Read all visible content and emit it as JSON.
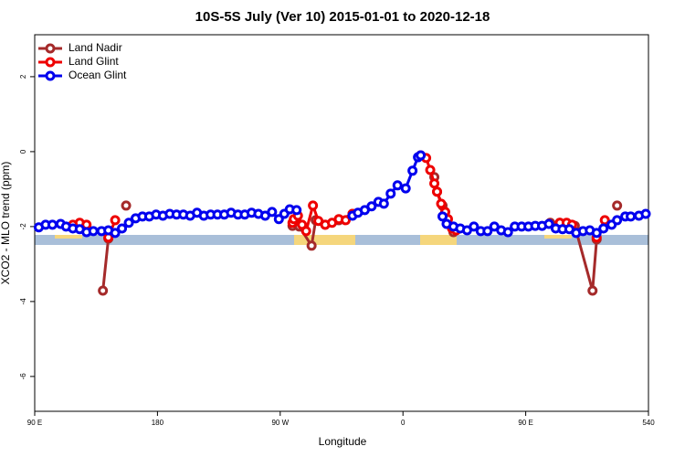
{
  "chart_data": {
    "type": "line",
    "title": "10S-5S July (Ver 10)   2015-01-01 to 2020-12-18",
    "x_label": "Longitude",
    "y_label": "XCO2 - MLO trend (ppm)",
    "xlim": [
      90,
      540
    ],
    "ylim": [
      -6.93,
      3.12
    ],
    "xticks": [
      {
        "value": 90,
        "label": "90 E"
      },
      180,
      {
        "value": 270,
        "label": "90 W"
      },
      {
        "value": 360,
        "label": "0"
      },
      {
        "value": 450,
        "label": "90 E"
      },
      540
    ],
    "yticks": [
      2,
      0,
      -2,
      -4,
      -6
    ],
    "legend": "top-left",
    "series": [
      {
        "name": "Land Nadir",
        "color": "#a52a2a",
        "x": [
          140,
          144,
          null,
          157,
          null,
          279,
          281,
          284,
          293,
          296,
          303,
          313,
          323,
          null,
          383,
          385,
          389,
          397,
          null,
          468,
          475,
          486,
          499,
          502,
          null,
          517
        ],
        "values": [
          -3.71,
          -2.32,
          null,
          -1.44,
          null,
          -1.98,
          -1.88,
          -2.0,
          -2.51,
          -1.83,
          -1.95,
          -1.83,
          -1.66,
          null,
          -0.68,
          -1.07,
          -1.44,
          -2.15,
          null,
          -1.9,
          -1.9,
          -1.98,
          -3.71,
          -2.34,
          null,
          -1.44
        ]
      },
      {
        "name": "Land Glint",
        "color": "#ee0000",
        "x": [
          118,
          123,
          128,
          null,
          144,
          149,
          null,
          279,
          280,
          283,
          286,
          289,
          294,
          298,
          303,
          308,
          313,
          318,
          323,
          null,
          373,
          377,
          380,
          383,
          385,
          388,
          391,
          393,
          396,
          399,
          null,
          475,
          480,
          484,
          null,
          502,
          508
        ],
        "values": [
          -1.95,
          -1.9,
          -1.95,
          null,
          -2.29,
          -1.83,
          null,
          -1.9,
          -1.8,
          -1.71,
          -1.95,
          -2.12,
          -1.44,
          -1.85,
          -1.95,
          -1.9,
          -1.8,
          -1.83,
          -1.66,
          null,
          -0.1,
          -0.17,
          -0.49,
          -0.85,
          -1.07,
          -1.39,
          -1.61,
          -1.8,
          -2.05,
          -2.1,
          null,
          -1.9,
          -1.9,
          -1.95,
          null,
          -2.29,
          -1.83
        ]
      },
      {
        "name": "Ocean Glint",
        "color": "#0000ee",
        "x": [
          93,
          98,
          103,
          109,
          113,
          118,
          123,
          128,
          133,
          139,
          144,
          149,
          154,
          159,
          164,
          169,
          174,
          179,
          184,
          189,
          194,
          199,
          204,
          209,
          214,
          219,
          224,
          229,
          234,
          239,
          244,
          249,
          254,
          259,
          264,
          269,
          273,
          277,
          282,
          null,
          323,
          327,
          332,
          337,
          342,
          346,
          351,
          356,
          362,
          367,
          371,
          373,
          null,
          389,
          392,
          397,
          402,
          407,
          412,
          417,
          422,
          427,
          432,
          437,
          442,
          447,
          452,
          457,
          462,
          467,
          472,
          477,
          482,
          487,
          492,
          497,
          502,
          507,
          513,
          517,
          523,
          527,
          533,
          538
        ],
        "values": [
          -2.02,
          -1.95,
          -1.95,
          -1.93,
          -2.0,
          -2.05,
          -2.07,
          -2.15,
          -2.12,
          -2.12,
          -2.1,
          -2.17,
          -2.05,
          -1.9,
          -1.78,
          -1.73,
          -1.73,
          -1.68,
          -1.71,
          -1.66,
          -1.68,
          -1.68,
          -1.71,
          -1.63,
          -1.71,
          -1.68,
          -1.68,
          -1.68,
          -1.63,
          -1.68,
          -1.68,
          -1.63,
          -1.66,
          -1.71,
          -1.61,
          -1.8,
          -1.66,
          -1.54,
          -1.56,
          null,
          -1.71,
          -1.63,
          -1.56,
          -1.46,
          -1.34,
          -1.39,
          -1.12,
          -0.9,
          -0.98,
          -0.51,
          -0.15,
          -0.1,
          null,
          -1.73,
          -1.93,
          -2.0,
          -2.05,
          -2.1,
          -2.0,
          -2.12,
          -2.12,
          -2.0,
          -2.1,
          -2.15,
          -2.0,
          -2.0,
          -2.0,
          -1.98,
          -1.98,
          -1.93,
          -2.05,
          -2.07,
          -2.07,
          -2.17,
          -2.12,
          -2.1,
          -2.17,
          -2.05,
          -1.95,
          -1.83,
          -1.73,
          -1.73,
          -1.71,
          -1.66
        ]
      }
    ]
  }
}
